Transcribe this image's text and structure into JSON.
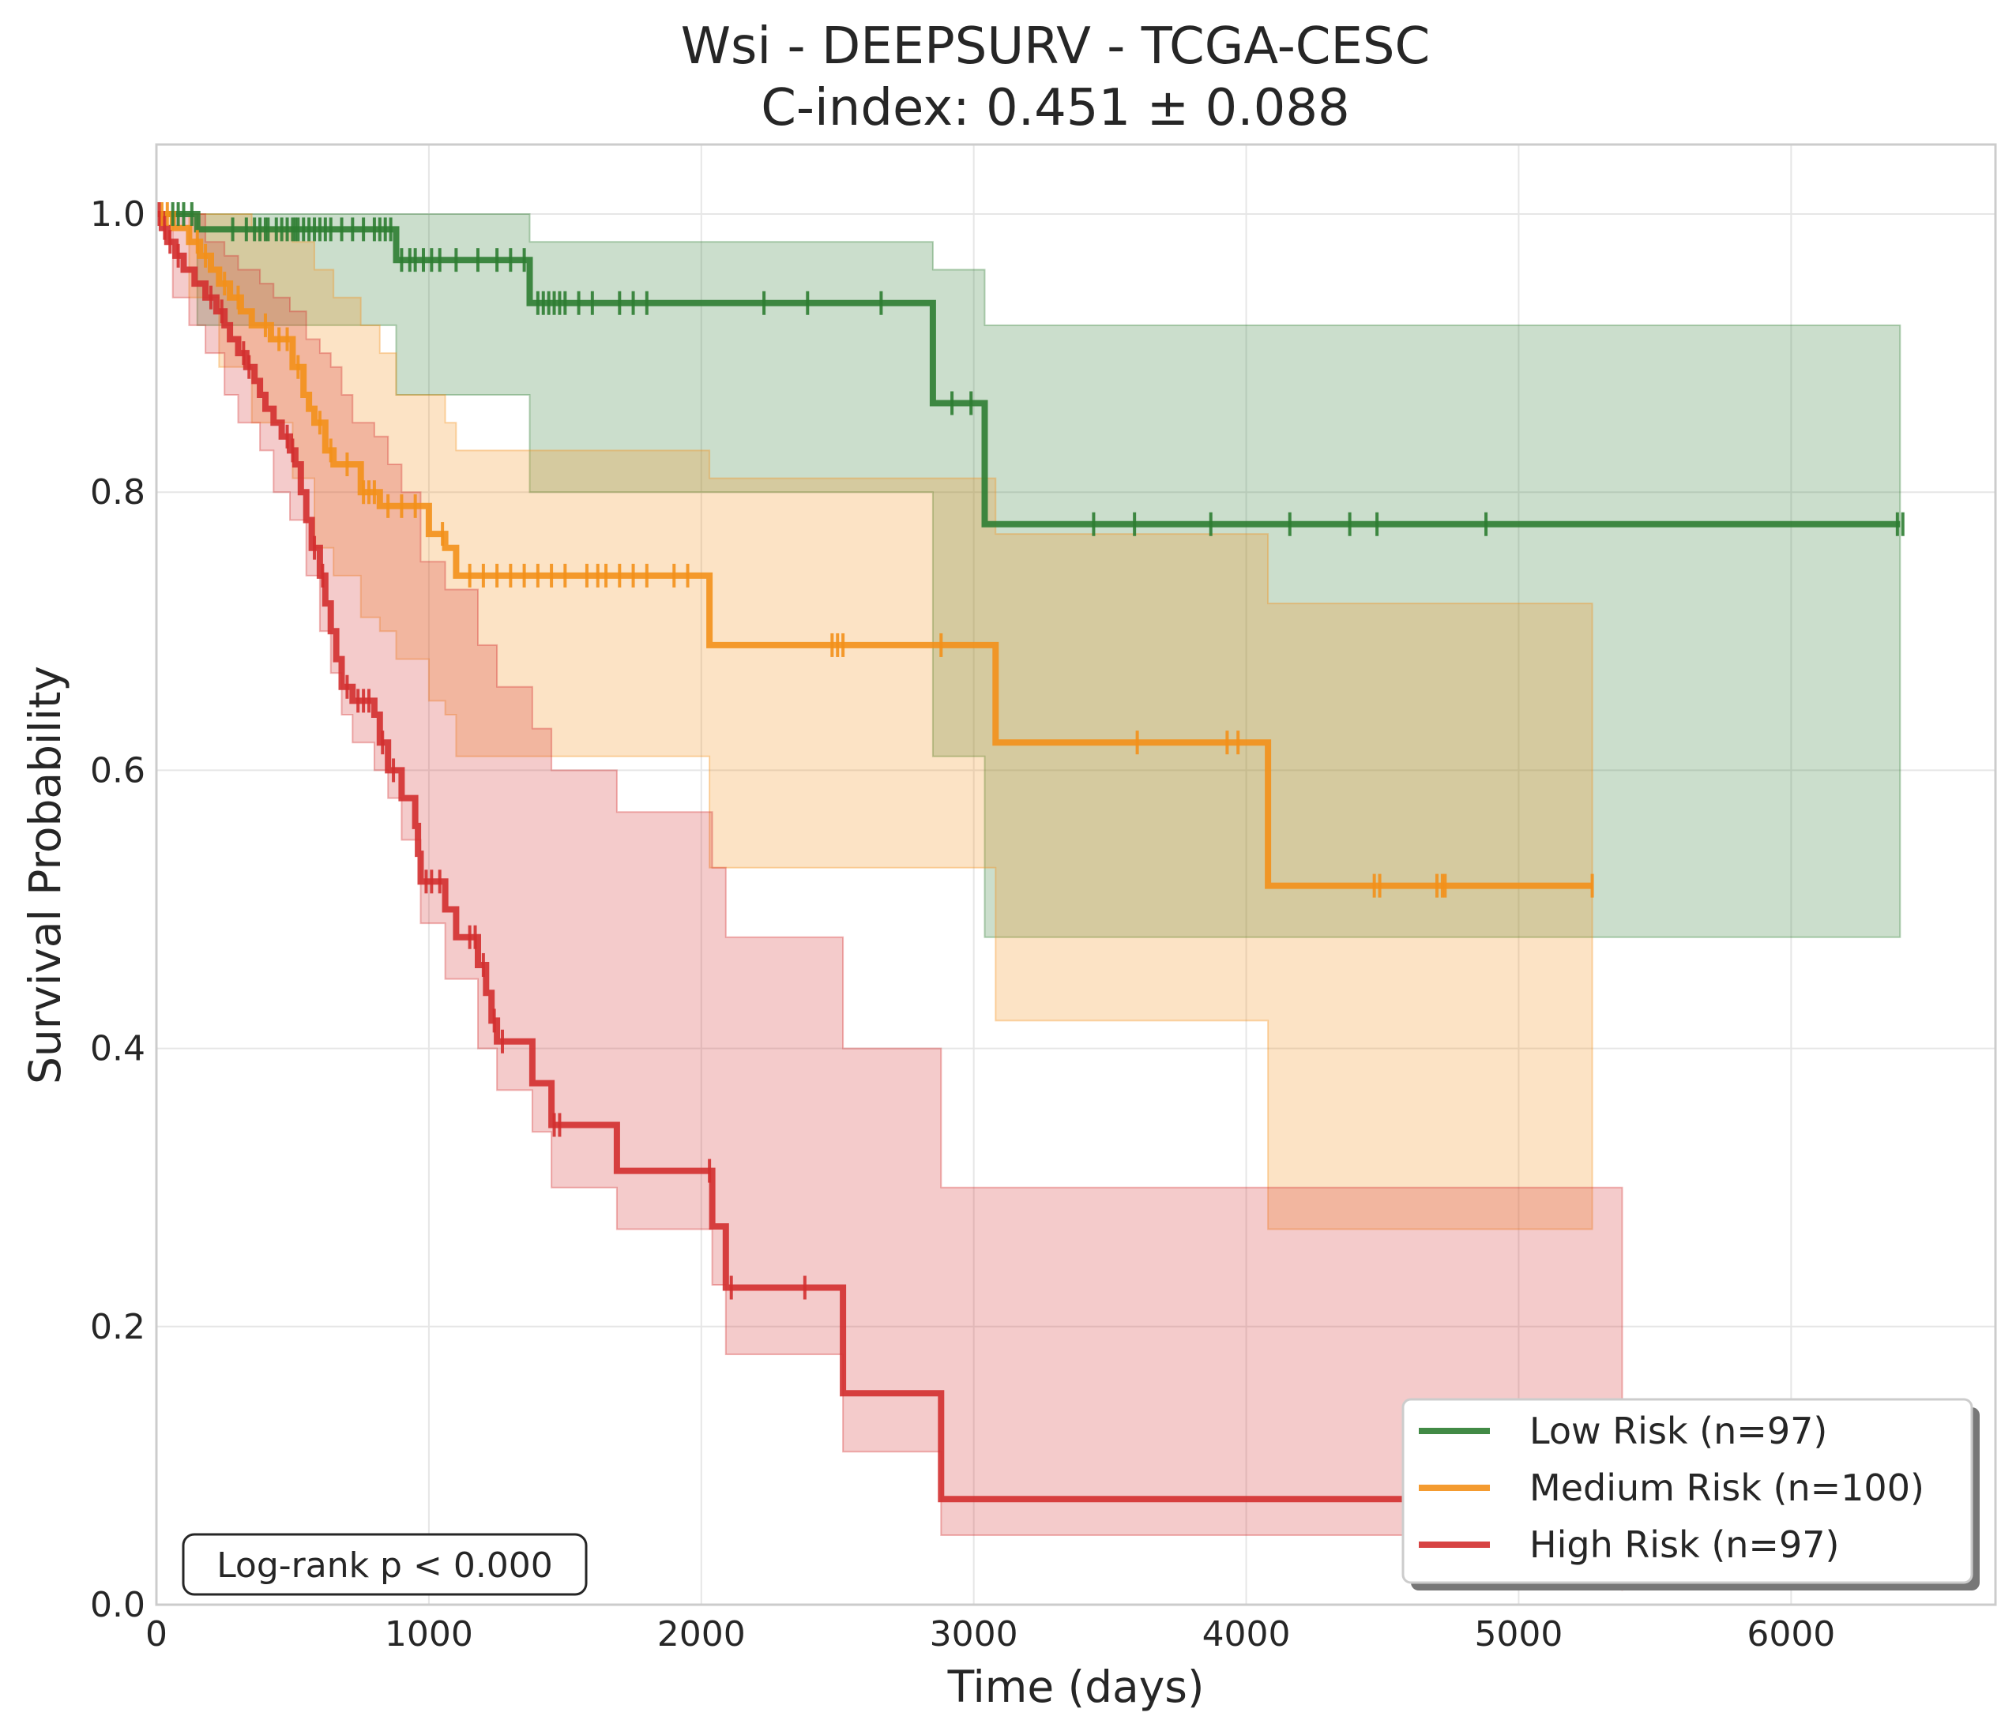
{
  "chart_data": {
    "type": "line",
    "subtype": "kaplan-meier",
    "title": "Wsi - DEEPSURV - TCGA-CESC",
    "subtitle": "C-index: 0.451 ± 0.088",
    "xlabel": "Time (days)",
    "ylabel": "Survival Probability",
    "xlim": [
      0,
      6750
    ],
    "ylim": [
      0,
      1.05
    ],
    "x_ticks": [
      0,
      1000,
      2000,
      3000,
      4000,
      5000,
      6000
    ],
    "y_ticks": [
      0.0,
      0.2,
      0.4,
      0.6,
      0.8,
      1.0
    ],
    "x_tick_labels": [
      "0",
      "1000",
      "2000",
      "3000",
      "4000",
      "5000",
      "6000"
    ],
    "y_tick_labels": [
      "0.0",
      "0.2",
      "0.4",
      "0.6",
      "0.8",
      "1.0"
    ],
    "grid": true,
    "legend_position": "lower-right",
    "annotation": "Log-rank p < 0.000",
    "series": [
      {
        "name": "Low Risk (n=97)",
        "color": "#2e7d32",
        "steps": [
          [
            0,
            1.0
          ],
          [
            150,
            0.989
          ],
          [
            880,
            0.967
          ],
          [
            1370,
            0.936
          ],
          [
            2850,
            0.864
          ],
          [
            3040,
            0.777
          ],
          [
            6400,
            0.777
          ]
        ],
        "ci": [
          [
            0,
            1.0,
            1.0
          ],
          [
            150,
            0.92,
            1.0
          ],
          [
            880,
            0.87,
            1.0
          ],
          [
            1370,
            0.8,
            0.98
          ],
          [
            2850,
            0.61,
            0.96
          ],
          [
            3040,
            0.48,
            0.92
          ],
          [
            6400,
            0.48,
            0.92
          ]
        ],
        "censor": [
          60,
          80,
          100,
          130,
          280,
          330,
          360,
          380,
          400,
          410,
          440,
          460,
          480,
          500,
          510,
          520,
          540,
          560,
          580,
          600,
          620,
          640,
          680,
          720,
          760,
          800,
          820,
          840,
          860,
          900,
          930,
          950,
          980,
          1010,
          1040,
          1100,
          1180,
          1250,
          1300,
          1350,
          1400,
          1420,
          1440,
          1460,
          1480,
          1500,
          1550,
          1600,
          1700,
          1750,
          1800,
          2230,
          2390,
          2660,
          2920,
          2990,
          3440,
          3590,
          3870,
          4160,
          4380,
          4480,
          4880,
          6390,
          6410
        ]
      },
      {
        "name": "Medium Risk (n=100)",
        "color": "#f39019",
        "steps": [
          [
            0,
            1.0
          ],
          [
            60,
            0.99
          ],
          [
            120,
            0.98
          ],
          [
            160,
            0.97
          ],
          [
            200,
            0.96
          ],
          [
            230,
            0.95
          ],
          [
            270,
            0.94
          ],
          [
            310,
            0.93
          ],
          [
            350,
            0.92
          ],
          [
            420,
            0.91
          ],
          [
            500,
            0.89
          ],
          [
            540,
            0.87
          ],
          [
            560,
            0.86
          ],
          [
            580,
            0.85
          ],
          [
            620,
            0.83
          ],
          [
            650,
            0.82
          ],
          [
            750,
            0.8
          ],
          [
            820,
            0.79
          ],
          [
            1000,
            0.77
          ],
          [
            1060,
            0.76
          ],
          [
            1100,
            0.74
          ],
          [
            2030,
            0.69
          ],
          [
            3080,
            0.62
          ],
          [
            4080,
            0.517
          ],
          [
            5270,
            0.517
          ]
        ],
        "ci": [
          [
            0,
            1.0,
            1.0
          ],
          [
            120,
            0.94,
            1.0
          ],
          [
            230,
            0.89,
            1.0
          ],
          [
            350,
            0.85,
            0.99
          ],
          [
            500,
            0.81,
            0.98
          ],
          [
            580,
            0.76,
            0.96
          ],
          [
            650,
            0.74,
            0.94
          ],
          [
            750,
            0.71,
            0.92
          ],
          [
            820,
            0.7,
            0.9
          ],
          [
            880,
            0.68,
            0.87
          ],
          [
            1000,
            0.65,
            0.87
          ],
          [
            1060,
            0.64,
            0.85
          ],
          [
            1100,
            0.61,
            0.83
          ],
          [
            2030,
            0.53,
            0.81
          ],
          [
            3080,
            0.42,
            0.77
          ],
          [
            4080,
            0.27,
            0.72
          ],
          [
            5270,
            0.27,
            0.72
          ]
        ],
        "censor": [
          20,
          40,
          150,
          180,
          250,
          300,
          400,
          450,
          480,
          520,
          600,
          640,
          700,
          760,
          780,
          800,
          850,
          900,
          950,
          1050,
          1150,
          1200,
          1250,
          1300,
          1350,
          1400,
          1450,
          1500,
          1580,
          1620,
          1650,
          1700,
          1750,
          1800,
          1900,
          1950,
          2480,
          2500,
          2520,
          2880,
          3600,
          3930,
          3970,
          4470,
          4490,
          4700,
          4720,
          4730,
          5270
        ]
      },
      {
        "name": "High Risk (n=97)",
        "color": "#d32f2f",
        "steps": [
          [
            0,
            1.0
          ],
          [
            20,
            0.99
          ],
          [
            40,
            0.98
          ],
          [
            70,
            0.97
          ],
          [
            100,
            0.96
          ],
          [
            140,
            0.95
          ],
          [
            180,
            0.94
          ],
          [
            220,
            0.93
          ],
          [
            250,
            0.92
          ],
          [
            270,
            0.91
          ],
          [
            300,
            0.9
          ],
          [
            330,
            0.89
          ],
          [
            360,
            0.88
          ],
          [
            380,
            0.87
          ],
          [
            400,
            0.86
          ],
          [
            430,
            0.85
          ],
          [
            460,
            0.84
          ],
          [
            490,
            0.83
          ],
          [
            510,
            0.82
          ],
          [
            530,
            0.8
          ],
          [
            550,
            0.78
          ],
          [
            570,
            0.76
          ],
          [
            600,
            0.74
          ],
          [
            620,
            0.72
          ],
          [
            640,
            0.7
          ],
          [
            660,
            0.68
          ],
          [
            680,
            0.66
          ],
          [
            720,
            0.65
          ],
          [
            800,
            0.64
          ],
          [
            820,
            0.62
          ],
          [
            850,
            0.6
          ],
          [
            900,
            0.58
          ],
          [
            950,
            0.56
          ],
          [
            960,
            0.54
          ],
          [
            970,
            0.52
          ],
          [
            1060,
            0.5
          ],
          [
            1100,
            0.48
          ],
          [
            1180,
            0.46
          ],
          [
            1210,
            0.44
          ],
          [
            1230,
            0.42
          ],
          [
            1250,
            0.405
          ],
          [
            1380,
            0.375
          ],
          [
            1450,
            0.345
          ],
          [
            1690,
            0.312
          ],
          [
            2040,
            0.272
          ],
          [
            2090,
            0.228
          ],
          [
            2520,
            0.152
          ],
          [
            2880,
            0.076
          ],
          [
            5380,
            0.076
          ]
        ],
        "ci": [
          [
            0,
            1.0,
            1.0
          ],
          [
            60,
            0.94,
            1.0
          ],
          [
            120,
            0.92,
            1.0
          ],
          [
            180,
            0.9,
            0.98
          ],
          [
            250,
            0.87,
            0.97
          ],
          [
            300,
            0.85,
            0.96
          ],
          [
            380,
            0.83,
            0.95
          ],
          [
            430,
            0.8,
            0.94
          ],
          [
            490,
            0.78,
            0.93
          ],
          [
            550,
            0.74,
            0.91
          ],
          [
            600,
            0.7,
            0.9
          ],
          [
            640,
            0.67,
            0.89
          ],
          [
            680,
            0.64,
            0.87
          ],
          [
            720,
            0.62,
            0.85
          ],
          [
            800,
            0.6,
            0.84
          ],
          [
            850,
            0.58,
            0.82
          ],
          [
            900,
            0.55,
            0.8
          ],
          [
            970,
            0.49,
            0.75
          ],
          [
            1060,
            0.45,
            0.73
          ],
          [
            1180,
            0.4,
            0.69
          ],
          [
            1250,
            0.37,
            0.66
          ],
          [
            1380,
            0.34,
            0.63
          ],
          [
            1450,
            0.3,
            0.6
          ],
          [
            1690,
            0.27,
            0.57
          ],
          [
            2040,
            0.23,
            0.53
          ],
          [
            2090,
            0.18,
            0.48
          ],
          [
            2520,
            0.11,
            0.4
          ],
          [
            2880,
            0.05,
            0.3
          ],
          [
            5380,
            0.01,
            0.27
          ]
        ],
        "censor": [
          10,
          30,
          50,
          80,
          200,
          240,
          320,
          340,
          480,
          500,
          580,
          610,
          700,
          740,
          760,
          780,
          830,
          870,
          990,
          1010,
          1040,
          1150,
          1170,
          1200,
          1240,
          1270,
          1460,
          1480,
          2030,
          2110,
          2380
        ]
      }
    ]
  }
}
